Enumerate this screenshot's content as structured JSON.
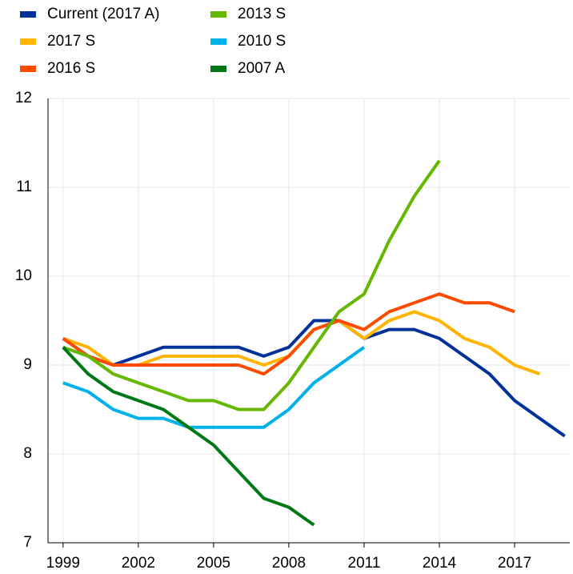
{
  "chart_data": {
    "type": "line",
    "x": [
      1999,
      2000,
      2001,
      2002,
      2003,
      2004,
      2005,
      2006,
      2007,
      2008,
      2009,
      2010,
      2011,
      2012,
      2013,
      2014,
      2015,
      2016,
      2017,
      2018,
      2019
    ],
    "series": [
      {
        "name": "Current (2017 A)",
        "color": "#003299",
        "values": [
          9.3,
          9.1,
          9.0,
          9.1,
          9.2,
          9.2,
          9.2,
          9.2,
          9.1,
          9.2,
          9.5,
          9.5,
          9.3,
          9.4,
          9.4,
          9.3,
          9.1,
          8.9,
          8.6,
          8.4,
          8.2
        ]
      },
      {
        "name": "2017 S",
        "color": "#ffb400",
        "values": [
          9.3,
          9.2,
          9.0,
          9.0,
          9.1,
          9.1,
          9.1,
          9.1,
          9.0,
          9.1,
          9.4,
          9.5,
          9.3,
          9.5,
          9.6,
          9.5,
          9.3,
          9.2,
          9.0,
          8.9,
          null
        ]
      },
      {
        "name": "2016 S",
        "color": "#ff4b00",
        "values": [
          9.3,
          9.1,
          9.0,
          9.0,
          9.0,
          9.0,
          9.0,
          9.0,
          8.9,
          9.1,
          9.4,
          9.5,
          9.4,
          9.6,
          9.7,
          9.8,
          9.7,
          9.7,
          9.6,
          null,
          null
        ]
      },
      {
        "name": "2013 S",
        "color": "#65b800",
        "values": [
          9.2,
          9.1,
          8.9,
          8.8,
          8.7,
          8.6,
          8.6,
          8.5,
          8.5,
          8.8,
          9.2,
          9.6,
          9.8,
          10.4,
          10.9,
          11.3,
          null,
          null,
          null,
          null,
          null
        ]
      },
      {
        "name": "2010 S",
        "color": "#00b1ea",
        "values": [
          8.8,
          8.7,
          8.5,
          8.4,
          8.4,
          8.3,
          8.3,
          8.3,
          8.3,
          8.5,
          8.8,
          9.0,
          9.2,
          null,
          null,
          null,
          null,
          null,
          null,
          null,
          null
        ]
      },
      {
        "name": "2007 A",
        "color": "#007816",
        "values": [
          9.2,
          8.9,
          8.7,
          8.6,
          8.5,
          8.3,
          8.1,
          7.8,
          7.5,
          7.4,
          7.2,
          null,
          null,
          null,
          null,
          null,
          null,
          null,
          null,
          null,
          null
        ]
      }
    ],
    "xlim": [
      1998.4,
      2019.2
    ],
    "xticks": [
      1999,
      2002,
      2005,
      2008,
      2011,
      2014,
      2017
    ],
    "ylim": [
      7,
      12
    ],
    "yticks": [
      7,
      8,
      9,
      10,
      11,
      12
    ],
    "grid": true
  }
}
